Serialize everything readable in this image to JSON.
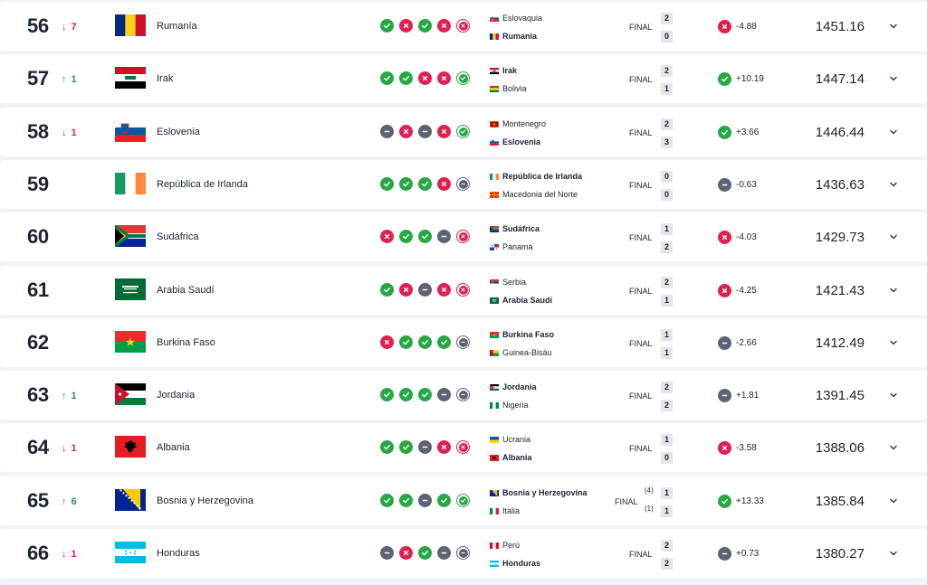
{
  "rows": [
    {
      "rank": "56",
      "move": {
        "dir": "down",
        "value": "7"
      },
      "country": "Rumanía",
      "flag": "romania-flag",
      "form": [
        "win",
        "loss",
        "win",
        "loss",
        "loss"
      ],
      "match": {
        "home": "Eslovaquia",
        "home_flag": "slovakia",
        "away": "Rumania",
        "away_flag": "romania",
        "bold": "away",
        "status": "FINAL",
        "home_score": "2",
        "away_score": "0",
        "home_pen": "",
        "away_pen": ""
      },
      "change": {
        "result": "loss",
        "value": "-4.88"
      },
      "points": "1451.16"
    },
    {
      "rank": "57",
      "move": {
        "dir": "up",
        "value": "1"
      },
      "country": "Irak",
      "flag": "iraq-flag",
      "form": [
        "win",
        "win",
        "loss",
        "loss",
        "win"
      ],
      "match": {
        "home": "Irak",
        "home_flag": "iraq",
        "away": "Bolivia",
        "away_flag": "bolivia",
        "bold": "home",
        "status": "FINAL",
        "home_score": "2",
        "away_score": "1",
        "home_pen": "",
        "away_pen": ""
      },
      "change": {
        "result": "win",
        "value": "+10.19"
      },
      "points": "1447.14"
    },
    {
      "rank": "58",
      "move": {
        "dir": "down",
        "value": "1"
      },
      "country": "Eslovenia",
      "flag": "slovenia-flag",
      "form": [
        "draw",
        "loss",
        "draw",
        "loss",
        "win"
      ],
      "match": {
        "home": "Montenegro",
        "home_flag": "montenegro",
        "away": "Eslovenia",
        "away_flag": "slovenia",
        "bold": "away",
        "status": "FINAL",
        "home_score": "2",
        "away_score": "3",
        "home_pen": "",
        "away_pen": ""
      },
      "change": {
        "result": "win",
        "value": "+3.66"
      },
      "points": "1446.44"
    },
    {
      "rank": "59",
      "move": {
        "dir": "",
        "value": ""
      },
      "country": "República de Irlanda",
      "flag": "ireland-flag",
      "form": [
        "win",
        "win",
        "win",
        "loss",
        "draw"
      ],
      "match": {
        "home": "República de Irlanda",
        "home_flag": "ireland",
        "away": "Macedonia del Norte",
        "away_flag": "north-macedonia",
        "bold": "home",
        "status": "FINAL",
        "home_score": "0",
        "away_score": "0",
        "home_pen": "",
        "away_pen": ""
      },
      "change": {
        "result": "draw",
        "value": "-0.63"
      },
      "points": "1436.63"
    },
    {
      "rank": "60",
      "move": {
        "dir": "",
        "value": ""
      },
      "country": "Sudáfrica",
      "flag": "south-africa-flag",
      "form": [
        "loss",
        "win",
        "win",
        "draw",
        "loss"
      ],
      "match": {
        "home": "Sudáfrica",
        "home_flag": "south-africa",
        "away": "Panamá",
        "away_flag": "panama",
        "bold": "home",
        "status": "FINAL",
        "home_score": "1",
        "away_score": "2",
        "home_pen": "",
        "away_pen": ""
      },
      "change": {
        "result": "loss",
        "value": "-4.03"
      },
      "points": "1429.73"
    },
    {
      "rank": "61",
      "move": {
        "dir": "",
        "value": ""
      },
      "country": "Arabia Saudí",
      "flag": "saudi-arabia-flag",
      "form": [
        "win",
        "loss",
        "draw",
        "loss",
        "loss"
      ],
      "match": {
        "home": "Serbia",
        "home_flag": "serbia",
        "away": "Arabia Saudí",
        "away_flag": "saudi-arabia",
        "bold": "away",
        "status": "FINAL",
        "home_score": "2",
        "away_score": "1",
        "home_pen": "",
        "away_pen": ""
      },
      "change": {
        "result": "loss",
        "value": "-4.25"
      },
      "points": "1421.43"
    },
    {
      "rank": "62",
      "move": {
        "dir": "",
        "value": ""
      },
      "country": "Burkina Faso",
      "flag": "burkina-faso-flag",
      "form": [
        "loss",
        "win",
        "win",
        "win",
        "draw"
      ],
      "match": {
        "home": "Burkina Faso",
        "home_flag": "burkina-faso",
        "away": "Guinea-Bisáu",
        "away_flag": "guinea-bissau",
        "bold": "home",
        "status": "FINAL",
        "home_score": "1",
        "away_score": "1",
        "home_pen": "",
        "away_pen": ""
      },
      "change": {
        "result": "draw",
        "value": "-2.66"
      },
      "points": "1412.49"
    },
    {
      "rank": "63",
      "move": {
        "dir": "up",
        "value": "1"
      },
      "country": "Jordania",
      "flag": "jordan-flag",
      "form": [
        "win",
        "win",
        "win",
        "draw",
        "draw"
      ],
      "match": {
        "home": "Jordania",
        "home_flag": "jordan",
        "away": "Nigeria",
        "away_flag": "nigeria",
        "bold": "home",
        "status": "FINAL",
        "home_score": "2",
        "away_score": "2",
        "home_pen": "",
        "away_pen": ""
      },
      "change": {
        "result": "draw",
        "value": "+1.81"
      },
      "points": "1391.45"
    },
    {
      "rank": "64",
      "move": {
        "dir": "down",
        "value": "1"
      },
      "country": "Albania",
      "flag": "albania-flag",
      "form": [
        "win",
        "win",
        "draw",
        "loss",
        "loss"
      ],
      "match": {
        "home": "Ucrania",
        "home_flag": "ukraine",
        "away": "Albania",
        "away_flag": "albania",
        "bold": "away",
        "status": "FINAL",
        "home_score": "1",
        "away_score": "0",
        "home_pen": "",
        "away_pen": ""
      },
      "change": {
        "result": "loss",
        "value": "-3.58"
      },
      "points": "1388.06"
    },
    {
      "rank": "65",
      "move": {
        "dir": "up",
        "value": "6"
      },
      "country": "Bosnia y Herzegovina",
      "flag": "bosnia-flag",
      "form": [
        "win",
        "win",
        "draw",
        "win",
        "win"
      ],
      "match": {
        "home": "Bosnia y Herzegovina",
        "home_flag": "bosnia",
        "away": "Italia",
        "away_flag": "italy",
        "bold": "home",
        "status": "FINAL",
        "home_score": "1",
        "away_score": "1",
        "home_pen": "(4)",
        "away_pen": "(1)"
      },
      "change": {
        "result": "win",
        "value": "+13.33"
      },
      "points": "1385.84"
    },
    {
      "rank": "66",
      "move": {
        "dir": "down",
        "value": "1"
      },
      "country": "Honduras",
      "flag": "honduras-flag",
      "form": [
        "draw",
        "loss",
        "win",
        "draw",
        "draw"
      ],
      "match": {
        "home": "Perú",
        "home_flag": "peru",
        "away": "Honduras",
        "away_flag": "honduras",
        "bold": "away",
        "status": "FINAL",
        "home_score": "2",
        "away_score": "2",
        "home_pen": "",
        "away_pen": ""
      },
      "change": {
        "result": "draw",
        "value": "+0.73"
      },
      "points": "1380.27"
    }
  ]
}
